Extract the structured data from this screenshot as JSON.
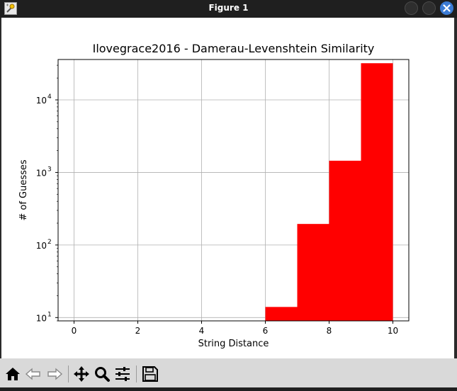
{
  "window": {
    "title": "Figure 1"
  },
  "toolbar": {
    "buttons": [
      "home-icon",
      "back-icon",
      "forward-icon",
      "pan-icon",
      "zoom-icon",
      "configure-subplots-icon",
      "save-icon"
    ]
  },
  "colors": {
    "bar": "#ff0000",
    "grid": "#b0b0b0",
    "close_button": "#3b7bd4"
  },
  "chart_data": {
    "type": "bar",
    "title": "Ilovegrace2016 - Damerau-Levenshtein Similarity",
    "xlabel": "String Distance",
    "ylabel": "# of Guesses",
    "yscale": "log",
    "xlim": [
      -0.5,
      10.5
    ],
    "ylim": [
      9,
      36000
    ],
    "xticks": [
      0,
      2,
      4,
      6,
      8,
      10
    ],
    "xtick_labels": [
      "0",
      "2",
      "4",
      "6",
      "8",
      "10"
    ],
    "yticks": [
      10,
      100,
      1000,
      10000
    ],
    "ytick_labels": [
      {
        "base": "10",
        "exp": "1"
      },
      {
        "base": "10",
        "exp": "2"
      },
      {
        "base": "10",
        "exp": "3"
      },
      {
        "base": "10",
        "exp": "4"
      }
    ],
    "grid": true,
    "bins": [
      {
        "x0": 0,
        "x1": 1,
        "value": 0
      },
      {
        "x0": 1,
        "x1": 2,
        "value": 0
      },
      {
        "x0": 2,
        "x1": 3,
        "value": 0
      },
      {
        "x0": 3,
        "x1": 4,
        "value": 0
      },
      {
        "x0": 4,
        "x1": 5,
        "value": 0
      },
      {
        "x0": 5,
        "x1": 6,
        "value": 0
      },
      {
        "x0": 6,
        "x1": 7,
        "value": 14
      },
      {
        "x0": 7,
        "x1": 8,
        "value": 195
      },
      {
        "x0": 8,
        "x1": 9,
        "value": 1450
      },
      {
        "x0": 9,
        "x1": 10,
        "value": 32000
      }
    ]
  }
}
